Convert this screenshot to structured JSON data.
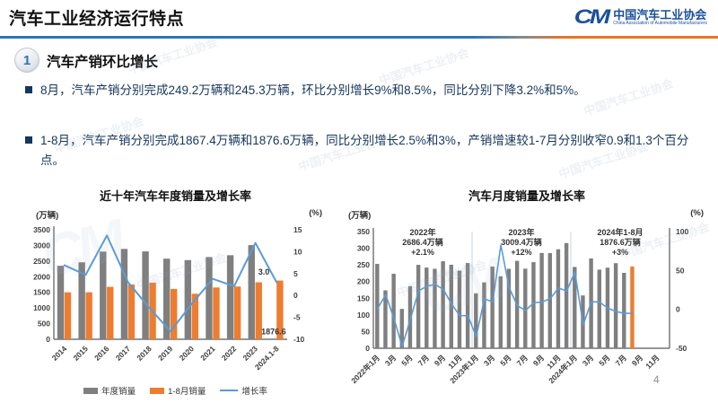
{
  "header": {
    "title": "汽车工业经济运行特点",
    "logo": {
      "mark": "CM",
      "name_zh": "中国汽车工业协会",
      "name_en": "China Association of Automobile Manufacturers"
    }
  },
  "section": {
    "number": "1",
    "title": "汽车产销环比增长"
  },
  "bullets": [
    "8月，汽车产销分别完成249.2万辆和245.3万辆，环比分别增长9%和8.5%，同比分别下降3.2%和5%。",
    "1-8月，汽车产销分别完成1867.4万辆和1876.6万辆，同比分别增长2.5%和3%，产销增速较1-7月分别收窄0.9和1.3个百分点。"
  ],
  "watermark": {
    "text": "中国汽车工业协会",
    "mark": "CM"
  },
  "page_number": "4",
  "colors": {
    "bar_gray": "#7F7F7F",
    "bar_orange": "#ED7D31",
    "line_blue": "#5B9BD5",
    "accent_blue": "#2E74B5",
    "divider_orange": "#E87722",
    "text_navy": "#17365D"
  },
  "chart_data": [
    {
      "type": "bar",
      "title": "近十年汽车年度销量及增长率",
      "unit_left": "(万辆)",
      "unit_right": "(%)",
      "categories": [
        "2014",
        "2015",
        "2016",
        "2017",
        "2018",
        "2019",
        "2020",
        "2021",
        "2022",
        "2023",
        "2024.1-8"
      ],
      "x_tick_every": 1,
      "axis_left": {
        "min": 0,
        "max": 3500,
        "step": 500
      },
      "axis_right": {
        "min": -10,
        "max": 15,
        "step": 5
      },
      "series": [
        {
          "name": "年度销量",
          "type": "bar",
          "axis": "left",
          "color": "#7F7F7F",
          "values": [
            2349.2,
            2459.8,
            2802.8,
            2887.9,
            2808.1,
            2576.9,
            2531.1,
            2627.5,
            2686.4,
            3009.4,
            null
          ]
        },
        {
          "name": "1-8月销量",
          "type": "bar",
          "axis": "left",
          "color": "#ED7D31",
          "values": [
            1501,
            1502,
            1675,
            1751,
            1810,
            1610,
            1455,
            1656,
            1686,
            1821,
            1876.6
          ]
        },
        {
          "name": "增长率",
          "type": "line",
          "axis": "right",
          "color": "#5B9BD5",
          "values": [
            6.9,
            4.7,
            13.7,
            3.0,
            -2.8,
            -8.2,
            -1.9,
            3.8,
            2.1,
            12.0,
            3.0
          ]
        }
      ],
      "annotations": [
        {
          "text": "3.0",
          "x": 0.9,
          "y": 0.41,
          "anchor": "middle"
        },
        {
          "text": "1876.6",
          "x": 0.995,
          "y": 0.955,
          "anchor": "end"
        }
      ],
      "legend": [
        "年度销量",
        "1-8月销量",
        "增长率"
      ],
      "grid": false,
      "legend_position": "bottom"
    },
    {
      "type": "bar",
      "title": "汽车月度销量及增长率",
      "unit_left": "(万辆)",
      "unit_right": "(%)",
      "categories": [
        "2022年1月",
        "2月",
        "3月",
        "4月",
        "5月",
        "6月",
        "7月",
        "8月",
        "9月",
        "10月",
        "11月",
        "12月",
        "2023年1月",
        "2月",
        "3月",
        "4月",
        "5月",
        "6月",
        "7月",
        "8月",
        "9月",
        "10月",
        "11月",
        "12月",
        "2024年1月",
        "2月",
        "3月",
        "4月",
        "5月",
        "6月",
        "7月",
        "8月",
        "9月",
        "10月",
        "11月",
        "12月"
      ],
      "x_tick_every": 2,
      "axis_left": {
        "min": 0,
        "max": 350,
        "step": 50
      },
      "axis_right": {
        "min": -50,
        "max": 100,
        "step": 50
      },
      "separators": [
        12,
        24
      ],
      "series": [
        {
          "name": "月度销量",
          "type": "bar",
          "axis": "left",
          "color": "#7F7F7F",
          "highlight": {
            "index": 31,
            "color": "#ED7D31"
          },
          "values": [
            253.1,
            173.7,
            223.4,
            118.1,
            186.2,
            250.2,
            242.0,
            238.3,
            261.0,
            250.5,
            232.8,
            255.6,
            164.9,
            197.6,
            245.1,
            215.9,
            238.2,
            262.2,
            238.7,
            258.2,
            285.8,
            285.3,
            297.0,
            315.6,
            243.9,
            158.4,
            269.4,
            235.9,
            241.7,
            255.2,
            226.2,
            245.3,
            null,
            null,
            null,
            null
          ]
        },
        {
          "name": "增长率",
          "type": "line",
          "axis": "right",
          "color": "#5B9BD5",
          "values": [
            0.9,
            18.7,
            -11.7,
            -47.6,
            -12.6,
            23.8,
            29.7,
            32.1,
            25.7,
            6.9,
            -7.9,
            -8.4,
            -35.0,
            13.5,
            9.7,
            82.7,
            27.9,
            4.8,
            -1.4,
            8.4,
            9.5,
            13.8,
            27.4,
            23.5,
            47.9,
            -19.9,
            9.9,
            9.3,
            1.5,
            -2.7,
            -5.2,
            -5.0,
            null,
            null,
            null,
            null
          ]
        }
      ],
      "annotations": [
        {
          "lines": [
            "2022年",
            "2686.4万辆",
            "+2.1%"
          ],
          "x": 0.1667,
          "y": 0.03
        },
        {
          "lines": [
            "2023年",
            "3009.4万辆",
            "+12%"
          ],
          "x": 0.5,
          "y": 0.03
        },
        {
          "lines": [
            "2024年1-8月",
            "1876.6万辆",
            "+3%"
          ],
          "x": 0.8333,
          "y": 0.03
        }
      ],
      "grid": false,
      "legend_position": "none"
    }
  ]
}
